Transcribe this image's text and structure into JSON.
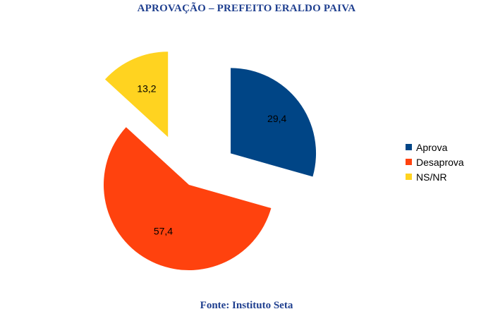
{
  "chart_data": {
    "type": "pie",
    "title": "APROVAÇÃO – PREFEITO ERALDO PAIVA",
    "categories": [
      "Aprova",
      "Desaprova",
      "NS/NR"
    ],
    "values": [
      29.4,
      57.4,
      13.2
    ],
    "value_labels": [
      "29,4",
      "57,4",
      "13,2"
    ],
    "colors": [
      "#004586",
      "#ff420e",
      "#ffd320"
    ],
    "legend": {
      "position": "right",
      "entries": [
        "Aprova",
        "Desaprova",
        "NS/NR"
      ]
    },
    "exploded": true
  },
  "source": "Fonte: Instituto Seta"
}
